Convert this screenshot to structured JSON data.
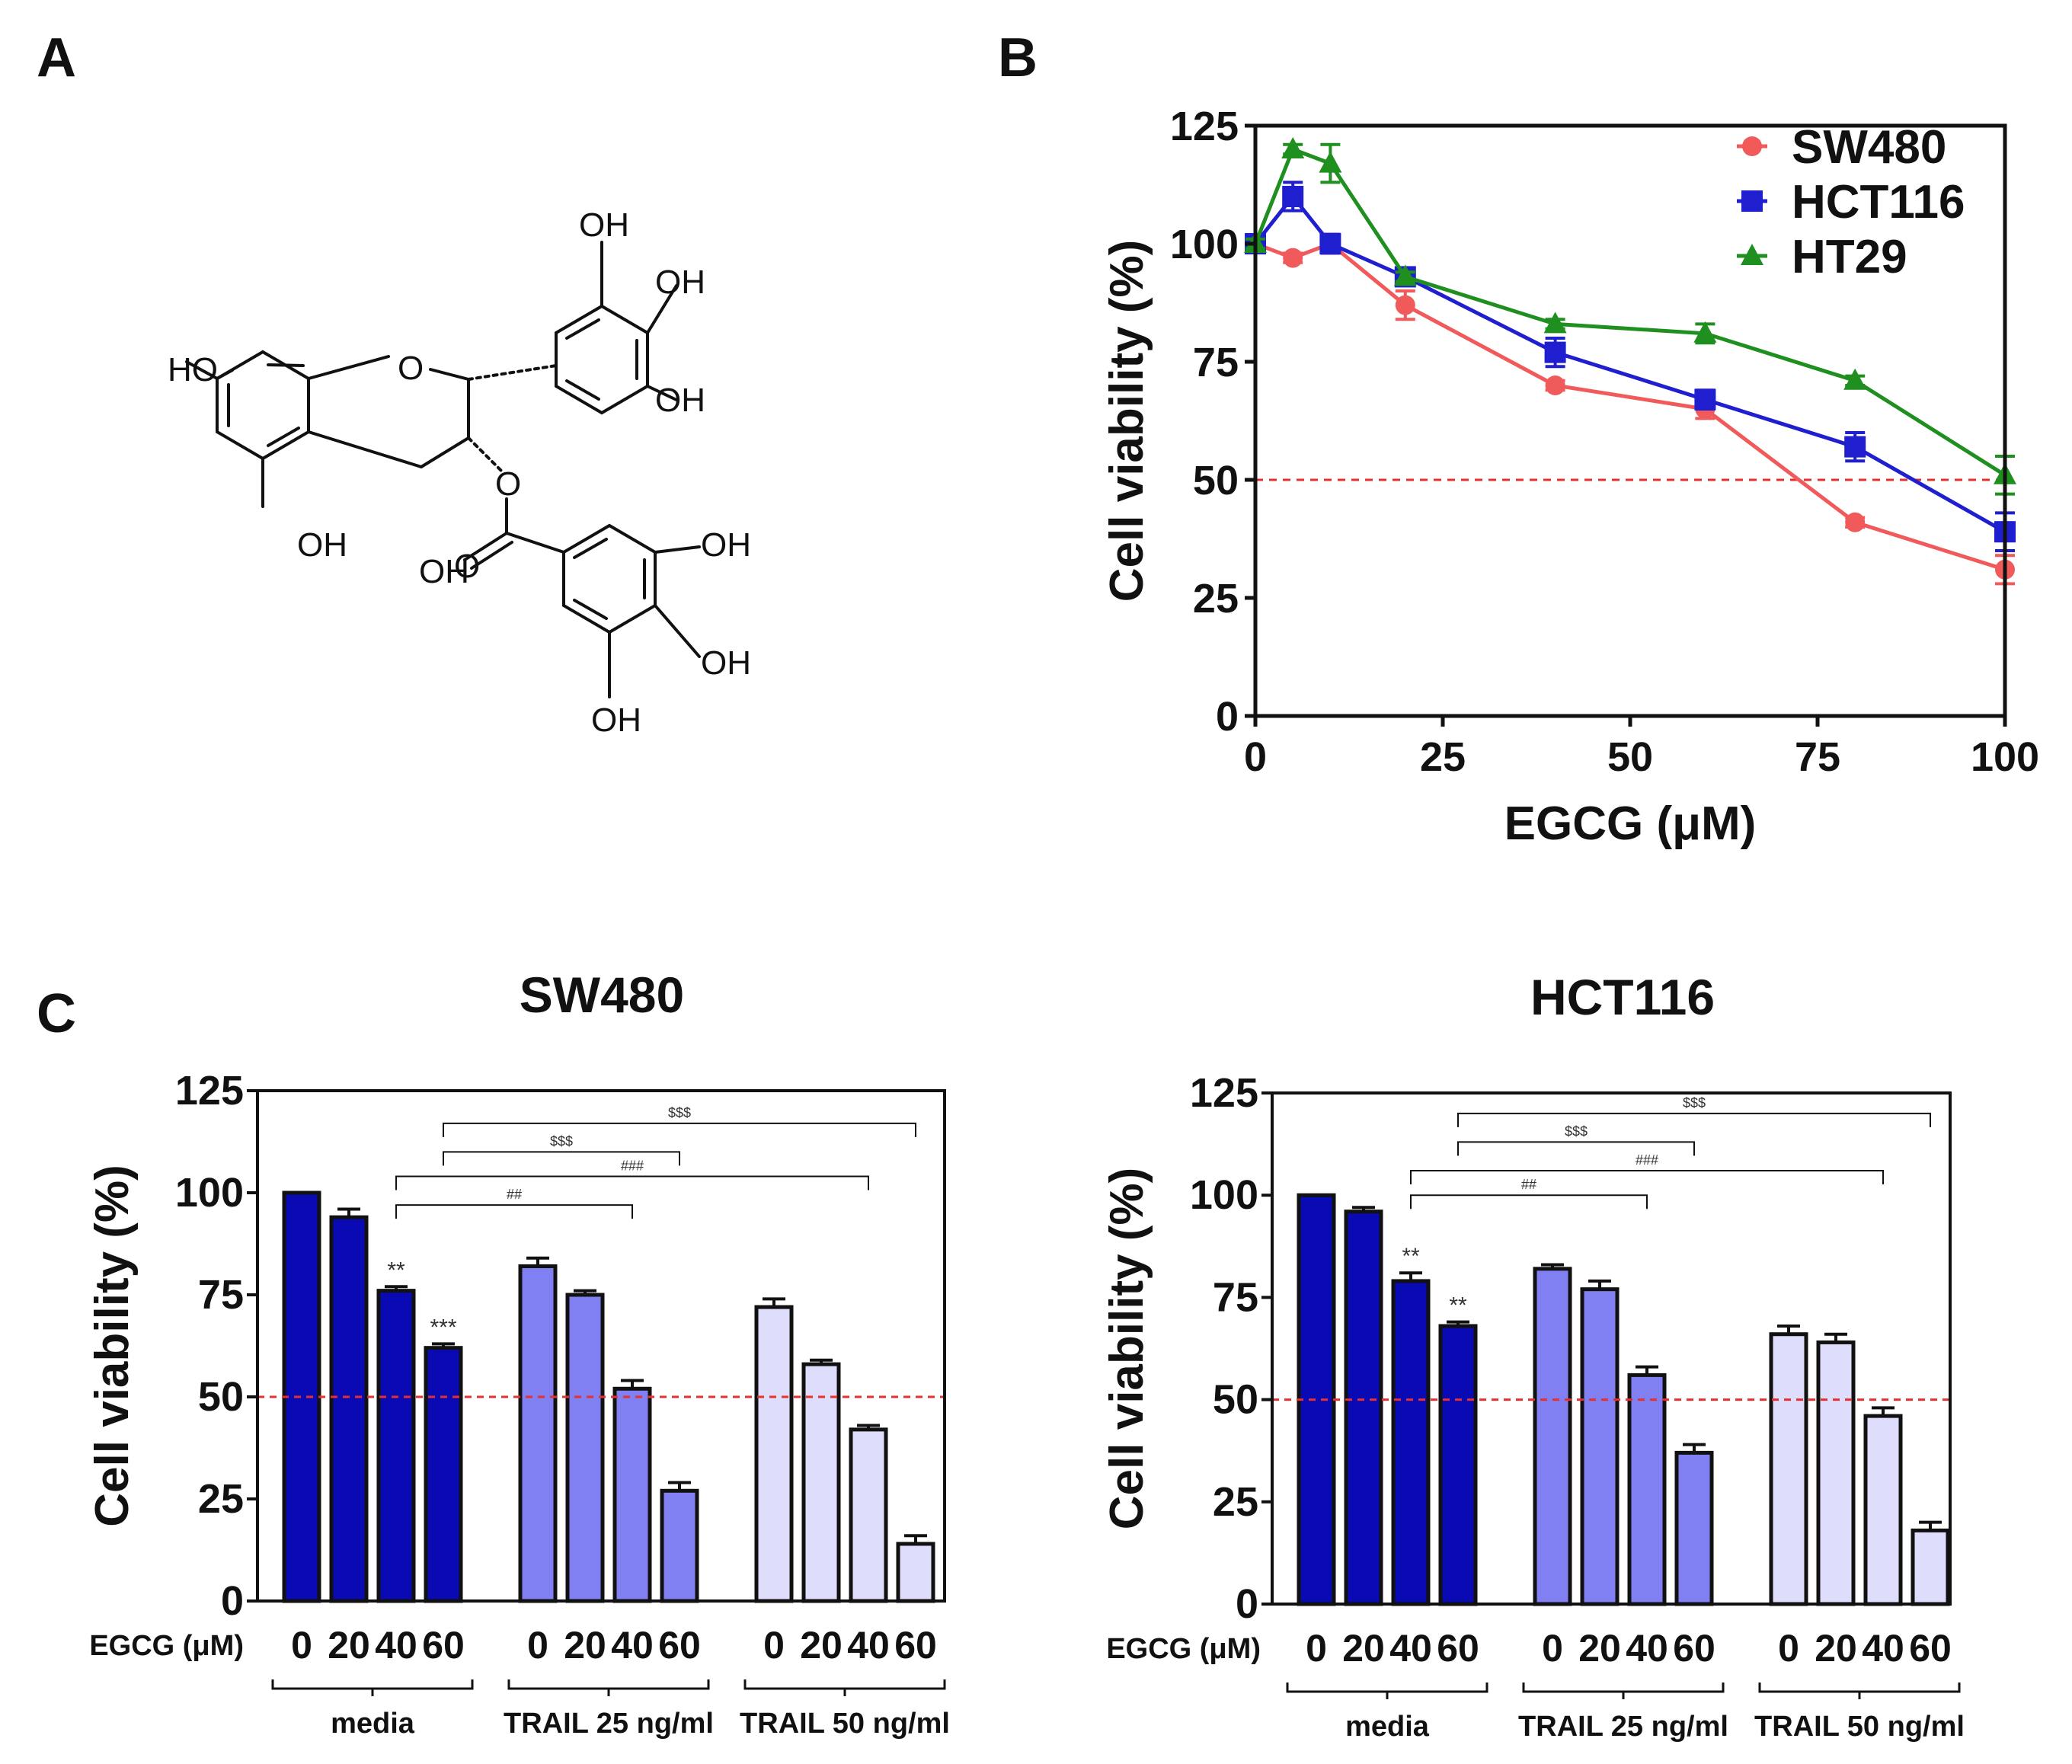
{
  "panels": {
    "a": "A",
    "b": "B",
    "c": "C"
  },
  "molecule": {
    "labels": [
      "OH",
      "OH",
      "OH",
      "HO",
      "O",
      "OH",
      "O",
      "OH",
      "O",
      "OH",
      "OH",
      "OH"
    ]
  },
  "chart_data": [
    {
      "id": "line",
      "type": "line",
      "title": "",
      "xlabel": "EGCG (μM)",
      "ylabel": "Cell viability (%)",
      "xlim": [
        0,
        100
      ],
      "ylim": [
        0,
        125
      ],
      "xticks": [
        0,
        25,
        50,
        75,
        100
      ],
      "yticks": [
        0,
        25,
        50,
        75,
        100,
        125
      ],
      "x": [
        0,
        5,
        10,
        20,
        40,
        60,
        80,
        100
      ],
      "reference_line": 50,
      "series": [
        {
          "name": "SW480",
          "color": "#f05a5a",
          "marker": "circle",
          "values": [
            100,
            97,
            100,
            87,
            70,
            65,
            41,
            31
          ],
          "errors": [
            1,
            1,
            2,
            3,
            1,
            2,
            1,
            3
          ]
        },
        {
          "name": "HCT116",
          "color": "#1f1fd0",
          "marker": "square",
          "values": [
            100,
            110,
            100,
            93,
            77,
            67,
            57,
            39
          ],
          "errors": [
            1,
            3,
            2,
            1,
            3,
            2,
            3,
            4
          ]
        },
        {
          "name": "HT29",
          "color": "#1f8f1f",
          "marker": "triangle",
          "values": [
            100,
            120,
            117,
            93,
            83,
            81,
            71,
            51
          ],
          "errors": [
            1,
            1,
            4,
            1,
            1,
            2,
            1,
            4
          ]
        }
      ]
    },
    {
      "id": "sw480",
      "type": "bar",
      "title": "SW480",
      "ylabel": "Cell viability (%)",
      "xlabel_prefix": "EGCG (μM)",
      "ylim": [
        0,
        125
      ],
      "yticks": [
        0,
        25,
        50,
        75,
        100,
        125
      ],
      "reference_line": 50,
      "groups": [
        {
          "name": "media",
          "color": "#0a0ab4",
          "categories": [
            "0",
            "20",
            "40",
            "60"
          ],
          "values": [
            100,
            94,
            76,
            62
          ],
          "errors": [
            0,
            2,
            1,
            1
          ],
          "stars": [
            "",
            "",
            "**",
            "***"
          ]
        },
        {
          "name": "TRAIL 25 ng/ml",
          "color": "#8080f2",
          "categories": [
            "0",
            "20",
            "40",
            "60"
          ],
          "values": [
            82,
            75,
            52,
            27
          ],
          "errors": [
            2,
            1,
            2,
            2
          ],
          "stars": [
            "",
            "",
            "",
            ""
          ]
        },
        {
          "name": "TRAIL 50 ng/ml",
          "color": "#dedefc",
          "categories": [
            "0",
            "20",
            "40",
            "60"
          ],
          "values": [
            72,
            58,
            42,
            14
          ],
          "errors": [
            2,
            1,
            1,
            2
          ],
          "stars": [
            "",
            "",
            "",
            ""
          ]
        }
      ],
      "brackets": [
        {
          "label": "$$$",
          "from": 3,
          "to": 11,
          "level": 117
        },
        {
          "label": "$$$",
          "from": 3,
          "to": 7,
          "level": 110
        },
        {
          "label": "###",
          "from": 2,
          "to": 10,
          "level": 104
        },
        {
          "label": "##",
          "from": 2,
          "to": 6,
          "level": 97
        }
      ]
    },
    {
      "id": "hct116",
      "type": "bar",
      "title": "HCT116",
      "ylabel": "Cell viability (%)",
      "xlabel_prefix": "EGCG (μM)",
      "ylim": [
        0,
        125
      ],
      "yticks": [
        0,
        25,
        50,
        75,
        100,
        125
      ],
      "reference_line": 50,
      "groups": [
        {
          "name": "media",
          "color": "#0a0ab4",
          "categories": [
            "0",
            "20",
            "40",
            "60"
          ],
          "values": [
            100,
            96,
            79,
            68
          ],
          "errors": [
            0,
            1,
            2,
            1
          ],
          "stars": [
            "",
            "",
            "**",
            "**"
          ]
        },
        {
          "name": "TRAIL 25 ng/ml",
          "color": "#8080f2",
          "categories": [
            "0",
            "20",
            "40",
            "60"
          ],
          "values": [
            82,
            77,
            56,
            37
          ],
          "errors": [
            1,
            2,
            2,
            2
          ],
          "stars": [
            "",
            "",
            "",
            ""
          ]
        },
        {
          "name": "TRAIL 50 ng/ml",
          "color": "#dedefc",
          "categories": [
            "0",
            "20",
            "40",
            "60"
          ],
          "values": [
            66,
            64,
            46,
            18
          ],
          "errors": [
            2,
            2,
            2,
            2
          ],
          "stars": [
            "",
            "",
            "",
            ""
          ]
        }
      ],
      "brackets": [
        {
          "label": "$$$",
          "from": 3,
          "to": 11,
          "level": 120
        },
        {
          "label": "$$$",
          "from": 3,
          "to": 7,
          "level": 113
        },
        {
          "label": "###",
          "from": 2,
          "to": 10,
          "level": 106
        },
        {
          "label": "##",
          "from": 2,
          "to": 6,
          "level": 100
        }
      ]
    }
  ]
}
